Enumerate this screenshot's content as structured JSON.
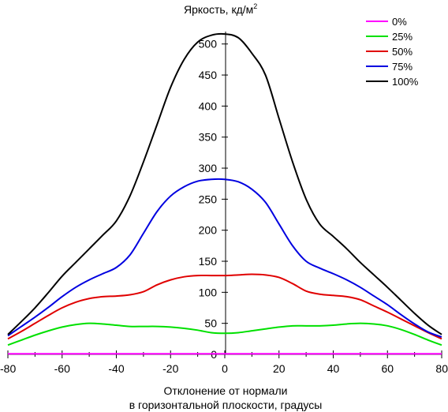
{
  "chart_data": {
    "type": "line",
    "title": "Яркость, кд/м",
    "title_superscript": "2",
    "xlabel_line1": "Отклонение от нормали",
    "xlabel_line2": "в горизонтальной плоскости, градусы",
    "xlim": [
      -80,
      80
    ],
    "ylim": [
      0,
      520
    ],
    "xticks": [
      -80,
      -60,
      -40,
      -20,
      0,
      20,
      40,
      60,
      80
    ],
    "yticks": [
      0,
      50,
      100,
      150,
      200,
      250,
      300,
      350,
      400,
      450,
      500
    ],
    "grid": false,
    "legend_position": "top-right",
    "series": [
      {
        "name": "0%",
        "color": "#ff00ff",
        "x": [
          -80,
          -60,
          -40,
          -20,
          0,
          20,
          40,
          60,
          80
        ],
        "y": [
          1,
          1,
          1,
          1,
          1,
          1,
          1,
          1,
          1
        ]
      },
      {
        "name": "25%",
        "color": "#00e000",
        "x": [
          -80,
          -75,
          -70,
          -65,
          -60,
          -55,
          -50,
          -45,
          -40,
          -35,
          -30,
          -25,
          -20,
          -15,
          -10,
          -5,
          0,
          5,
          10,
          15,
          20,
          25,
          30,
          35,
          40,
          45,
          50,
          55,
          60,
          65,
          70,
          75,
          80
        ],
        "y": [
          15,
          23,
          31,
          38,
          44,
          48,
          50,
          49,
          47,
          45,
          45,
          45,
          44,
          42,
          39,
          35,
          34,
          35,
          38,
          41,
          44,
          46,
          46,
          46,
          47,
          49,
          50,
          49,
          46,
          40,
          32,
          23,
          15
        ]
      },
      {
        "name": "50%",
        "color": "#e00000",
        "x": [
          -80,
          -75,
          -70,
          -65,
          -60,
          -55,
          -50,
          -45,
          -40,
          -35,
          -30,
          -25,
          -20,
          -15,
          -10,
          -5,
          0,
          5,
          10,
          15,
          20,
          25,
          30,
          35,
          40,
          45,
          50,
          55,
          60,
          65,
          70,
          75,
          80
        ],
        "y": [
          25,
          37,
          50,
          63,
          75,
          84,
          90,
          93,
          94,
          96,
          101,
          112,
          120,
          125,
          127,
          127,
          127,
          128,
          129,
          128,
          124,
          114,
          102,
          97,
          95,
          93,
          88,
          78,
          68,
          57,
          46,
          35,
          25
        ]
      },
      {
        "name": "75%",
        "color": "#0000e0",
        "x": [
          -80,
          -75,
          -70,
          -65,
          -60,
          -55,
          -50,
          -45,
          -40,
          -35,
          -30,
          -25,
          -20,
          -15,
          -10,
          -5,
          0,
          5,
          10,
          15,
          20,
          25,
          30,
          35,
          40,
          45,
          50,
          55,
          60,
          65,
          70,
          75,
          80
        ],
        "y": [
          30,
          45,
          60,
          76,
          93,
          108,
          120,
          130,
          140,
          160,
          195,
          230,
          255,
          270,
          279,
          282,
          282,
          278,
          266,
          245,
          210,
          175,
          150,
          139,
          130,
          120,
          108,
          94,
          80,
          64,
          49,
          36,
          28
        ]
      },
      {
        "name": "100%",
        "color": "#000000",
        "x": [
          -80,
          -75,
          -70,
          -65,
          -60,
          -55,
          -50,
          -45,
          -40,
          -35,
          -30,
          -25,
          -20,
          -15,
          -10,
          -5,
          0,
          5,
          10,
          15,
          20,
          25,
          30,
          35,
          40,
          45,
          50,
          55,
          60,
          65,
          70,
          75,
          80
        ],
        "y": [
          32,
          53,
          75,
          100,
          126,
          148,
          170,
          192,
          215,
          255,
          310,
          370,
          430,
          475,
          503,
          514,
          516,
          510,
          485,
          450,
          380,
          310,
          250,
          210,
          190,
          170,
          148,
          128,
          108,
          87,
          66,
          47,
          32
        ]
      }
    ]
  }
}
